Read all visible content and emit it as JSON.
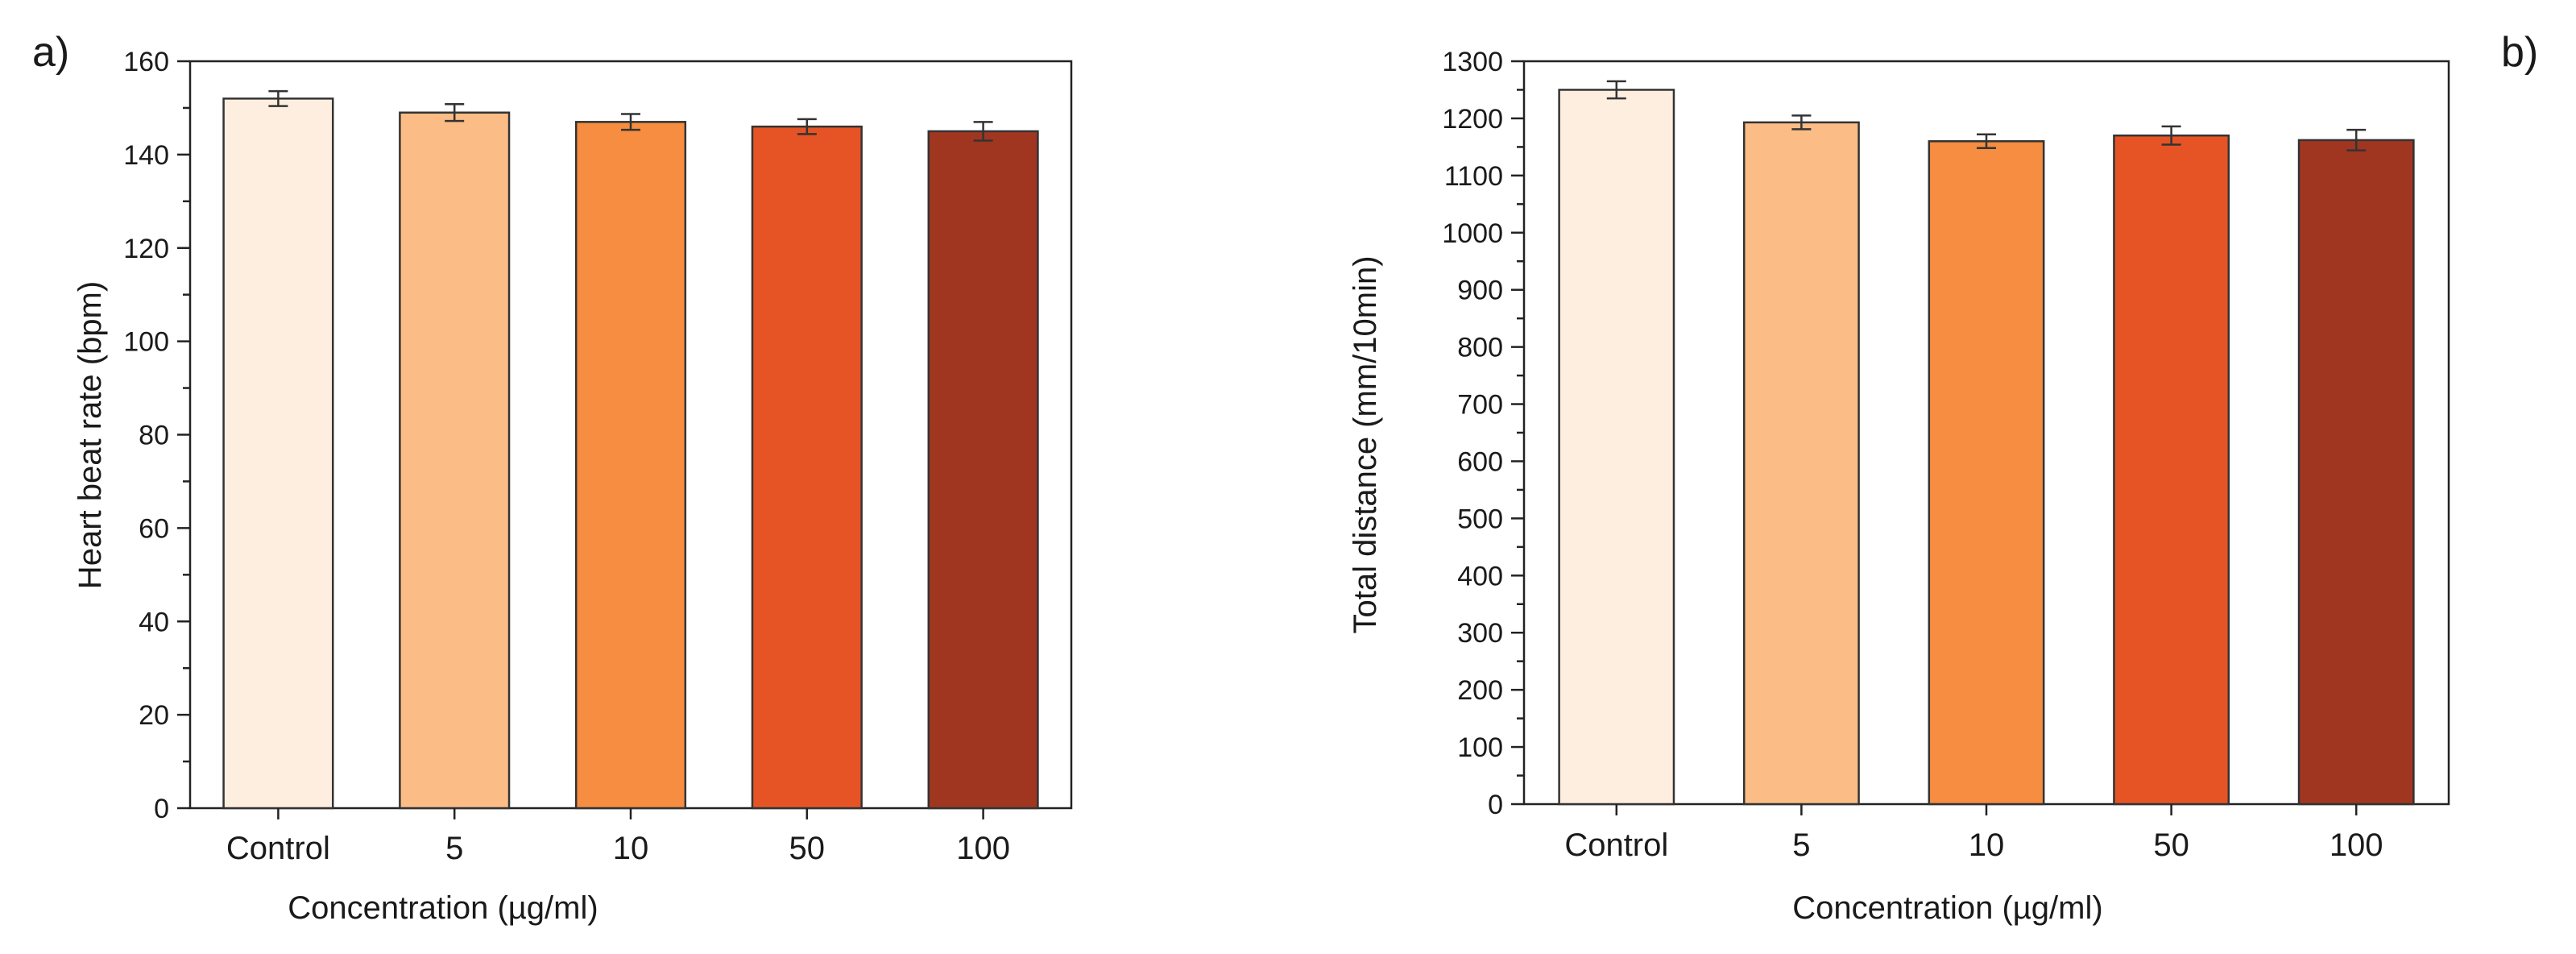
{
  "chart_data": [
    {
      "type": "bar",
      "panel_label": "a)",
      "title": "",
      "xlabel": "Concentration (µg/ml)",
      "ylabel": "Heart beat rate (bpm)",
      "categories": [
        "Control",
        "5",
        "10",
        "50",
        "100"
      ],
      "values": [
        152,
        149,
        147,
        146,
        145
      ],
      "errors": [
        1.6,
        1.8,
        1.7,
        1.6,
        2.0
      ],
      "ylim": [
        0,
        160
      ],
      "yticks": [
        0,
        20,
        40,
        60,
        80,
        100,
        120,
        140,
        160
      ],
      "grid": false,
      "legend": "none",
      "colors": [
        "#FEEEE0",
        "#FBBC86",
        "#F68D40",
        "#E65425",
        "#A13620"
      ]
    },
    {
      "type": "bar",
      "panel_label": "b)",
      "title": "",
      "xlabel": "Concentration (µg/ml)",
      "ylabel": "Total distance (mm/10min)",
      "categories": [
        "Control",
        "5",
        "10",
        "50",
        "100"
      ],
      "values": [
        1250,
        1193,
        1160,
        1170,
        1162
      ],
      "errors": [
        15,
        12,
        12,
        16,
        18
      ],
      "ylim": [
        0,
        1300
      ],
      "yticks": [
        0,
        100,
        200,
        300,
        400,
        500,
        600,
        700,
        800,
        900,
        1000,
        1100,
        1200,
        1300
      ],
      "grid": false,
      "legend": "none",
      "colors": [
        "#FEEEE0",
        "#FBBC86",
        "#F68D40",
        "#E65425",
        "#A13620"
      ]
    }
  ]
}
